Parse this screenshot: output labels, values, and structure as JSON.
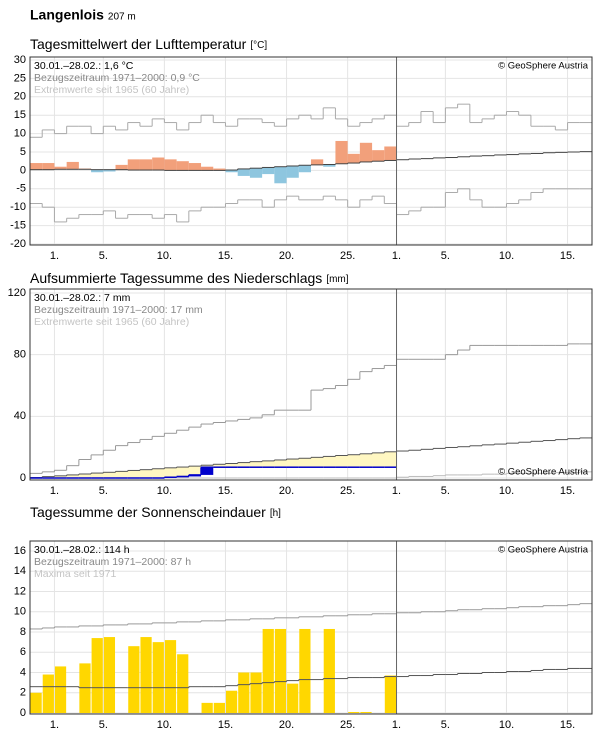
{
  "page_title": "Langenlois",
  "page_subtitle": "207 m",
  "chart_data": [
    {
      "type": "anomaly",
      "title": "Tagesmittelwert der Lufttemperatur",
      "unit": "[°C]",
      "info": [
        "30.01.–28.02.: 1,6 °C",
        "Bezugszeitraum 1971–2000: 0,9 °C",
        "Extremwerte seit 1965 (60 Jahre)"
      ],
      "copyright": "© GeoSphere Austria",
      "copyright_corner": "top-right",
      "categories": [
        null,
        null,
        "1.",
        null,
        null,
        null,
        "5.",
        null,
        null,
        null,
        null,
        "10.",
        null,
        null,
        null,
        null,
        "15.",
        null,
        null,
        null,
        null,
        "20.",
        null,
        null,
        null,
        null,
        "25.",
        null,
        null,
        null,
        "1.",
        null,
        null,
        null,
        "5.",
        null,
        null,
        null,
        null,
        "10.",
        null,
        null,
        null,
        null,
        "15.",
        null
      ],
      "ylim": [
        -20,
        30
      ],
      "yticks": [
        -20,
        -15,
        -10,
        -5,
        0,
        5,
        10,
        15,
        20,
        25,
        30
      ],
      "grid": true,
      "values": [
        2,
        2,
        1,
        2.3,
        0.5,
        -0.5,
        -0.3,
        1.5,
        3,
        3,
        3.5,
        3,
        2.5,
        2,
        1,
        0.5,
        -0.5,
        -1.5,
        -2,
        -1,
        -3.5,
        -2,
        -0.5,
        3,
        1,
        8,
        4.5,
        7.5,
        5.5,
        6.5,
        null,
        null,
        null,
        null,
        null,
        null,
        null,
        null,
        null,
        null,
        null,
        null,
        null,
        null,
        null,
        null
      ],
      "normal": [
        0.2,
        0.2,
        0.3,
        0.3,
        0.3,
        0.2,
        0.2,
        0.2,
        0.1,
        0.1,
        0.1,
        0,
        0,
        0,
        0,
        0,
        0.1,
        0.4,
        0.6,
        0.8,
        1,
        1.2,
        1.4,
        1.5,
        1.6,
        1.8,
        2,
        2.3,
        2.5,
        2.7,
        2.9,
        3.1,
        3.2,
        3.4,
        3.5,
        3.7,
        3.9,
        4,
        4.2,
        4.3,
        4.5,
        4.6,
        4.8,
        4.9,
        5,
        5.1
      ],
      "upper": [
        9,
        11,
        10,
        12,
        12,
        10,
        12,
        11,
        13,
        12,
        14,
        13,
        11,
        13,
        15,
        13,
        12,
        14,
        14,
        13,
        12,
        14,
        15,
        14,
        17,
        14,
        12,
        13,
        14,
        15,
        12,
        13,
        16,
        13,
        17,
        18,
        13,
        14,
        15,
        16,
        15,
        12,
        12,
        11,
        13,
        13
      ],
      "lower": [
        -9,
        -10,
        -14,
        -13,
        -12,
        -12,
        -11,
        -13,
        -12,
        -12,
        -13,
        -12,
        -14,
        -11,
        -10,
        -10,
        -9,
        -8,
        -8,
        -10,
        -8,
        -7,
        -8,
        -8,
        -7,
        -8,
        -10,
        -8,
        -7,
        -9,
        -12,
        -11,
        -10,
        -10,
        -6,
        -5,
        -8,
        -10,
        -10,
        -9,
        -8,
        -6,
        -5,
        -5,
        -5,
        -5
      ],
      "color_above": "#f2a07b",
      "color_below": "#8ec6df",
      "extreme_color": "#aaaaaa",
      "normal_color": "#444444"
    },
    {
      "type": "area",
      "title": "Aufsummierte Tagessumme des Niederschlags",
      "unit": "[mm]",
      "info": [
        "30.01.–28.02.: 7 mm",
        "Bezugszeitraum 1971–2000: 17 mm",
        "Extremwerte seit 1965 (60 Jahre)"
      ],
      "copyright": "© GeoSphere Austria",
      "copyright_corner": "bottom-right",
      "categories": [
        null,
        null,
        "1.",
        null,
        null,
        null,
        "5.",
        null,
        null,
        null,
        null,
        "10.",
        null,
        null,
        null,
        null,
        "15.",
        null,
        null,
        null,
        null,
        "20.",
        null,
        null,
        null,
        null,
        "25.",
        null,
        null,
        null,
        "1.",
        null,
        null,
        null,
        "5.",
        null,
        null,
        null,
        null,
        "10.",
        null,
        null,
        null,
        null,
        "15.",
        null
      ],
      "ylim": [
        0,
        120
      ],
      "yticks": [
        0,
        40,
        80,
        120
      ],
      "grid": true,
      "values": [
        0,
        0,
        0,
        0,
        0,
        0,
        0,
        0,
        0,
        0,
        0,
        0.5,
        1,
        2,
        7,
        7,
        7,
        7,
        7,
        7,
        7,
        7,
        7,
        7,
        7,
        7,
        7,
        7,
        7,
        7,
        null,
        null,
        null,
        null,
        null,
        null,
        null,
        null,
        null,
        null,
        null,
        null,
        null,
        null,
        null,
        null
      ],
      "normal": [
        0.3,
        0.9,
        1.4,
        2,
        2.6,
        3.2,
        3.7,
        4.3,
        4.9,
        5.4,
        6,
        6.6,
        7.1,
        7.7,
        8.3,
        8.9,
        9.4,
        10,
        10.6,
        11.1,
        11.7,
        12.3,
        12.8,
        13.4,
        14,
        14.6,
        15.1,
        15.7,
        16.3,
        17,
        17.5,
        18,
        18.6,
        19.2,
        19.8,
        20.3,
        20.9,
        21.5,
        22,
        22.6,
        23.2,
        23.8,
        24.3,
        24.9,
        25.5,
        26
      ],
      "upper": [
        3,
        4,
        5,
        8,
        12,
        15,
        18,
        21,
        23,
        25,
        27,
        29,
        31,
        33,
        35,
        36,
        37,
        38,
        39,
        41,
        44,
        44,
        44,
        57,
        58,
        60,
        64,
        69,
        71,
        73,
        77,
        77,
        77,
        77,
        80,
        83,
        86,
        86,
        86,
        86,
        86,
        86,
        86,
        86,
        87,
        87
      ],
      "lower": [
        0,
        0,
        0,
        0,
        0,
        0,
        0,
        0,
        0,
        0,
        0,
        0,
        0,
        0,
        0,
        0,
        0,
        0,
        0,
        0,
        0,
        0,
        0,
        0,
        0,
        0,
        0,
        0,
        0,
        0,
        0.5,
        1,
        1,
        1.5,
        2,
        2,
        2,
        2.5,
        2.5,
        3,
        3,
        3,
        3,
        3.5,
        3.5,
        4
      ],
      "fill_color": "#fff7c2",
      "value_color": "#0000cc",
      "upper_color": "#999999",
      "lower_color": "#bbbbbb",
      "normal_color": "#555555"
    },
    {
      "type": "bar",
      "title": "Tagessumme der Sonnenscheindauer",
      "unit": "[h]",
      "info": [
        "30.01.–28.02.: 114 h",
        "Bezugszeitraum 1971–2000: 87 h",
        "Maxima seit 1971"
      ],
      "copyright": "© GeoSphere Austria",
      "copyright_corner": "top-right",
      "categories": [
        null,
        null,
        "1.",
        null,
        null,
        null,
        "5.",
        null,
        null,
        null,
        null,
        "10.",
        null,
        null,
        null,
        null,
        "15.",
        null,
        null,
        null,
        null,
        "20.",
        null,
        null,
        null,
        null,
        "25.",
        null,
        null,
        null,
        "1.",
        null,
        null,
        null,
        "5.",
        null,
        null,
        null,
        null,
        "10.",
        null,
        null,
        null,
        null,
        "15.",
        null
      ],
      "ylim": [
        0,
        16
      ],
      "yticks": [
        0,
        2,
        4,
        6,
        8,
        10,
        12,
        14,
        16
      ],
      "grid": true,
      "values": [
        2,
        3.8,
        4.6,
        0,
        4.9,
        7.4,
        7.5,
        0,
        6.6,
        7.5,
        7,
        7.2,
        5.8,
        0,
        1,
        1,
        2.2,
        4,
        4,
        8.3,
        8.3,
        2.9,
        8.3,
        0,
        8.3,
        0,
        0.1,
        0.1,
        0,
        3.7,
        null,
        null,
        null,
        null,
        null,
        null,
        null,
        null,
        null,
        null,
        null,
        null,
        null,
        null,
        null,
        null
      ],
      "normal": [
        2.6,
        2.6,
        2.6,
        2.6,
        2.5,
        2.5,
        2.5,
        2.5,
        2.5,
        2.5,
        2.5,
        2.5,
        2.5,
        2.6,
        2.6,
        2.6,
        2.7,
        2.8,
        2.9,
        3,
        3.1,
        3.2,
        3.3,
        3.3,
        3.4,
        3.4,
        3.5,
        3.5,
        3.5,
        3.6,
        3.6,
        3.7,
        3.7,
        3.8,
        3.8,
        3.9,
        3.9,
        4,
        4,
        4.1,
        4.1,
        4.2,
        4.3,
        4.3,
        4.4,
        4.4
      ],
      "upper": [
        8.3,
        8.4,
        8.5,
        8.5,
        8.6,
        8.6,
        8.7,
        8.7,
        8.8,
        8.8,
        8.9,
        8.9,
        9,
        9,
        9.1,
        9.1,
        9.2,
        9.2,
        9.3,
        9.3,
        9.4,
        9.4,
        9.5,
        9.5,
        9.6,
        9.6,
        9.7,
        9.7,
        9.8,
        9.8,
        9.9,
        9.9,
        10,
        10,
        10.1,
        10.2,
        10.2,
        10.3,
        10.3,
        10.4,
        10.5,
        10.5,
        10.6,
        10.6,
        10.7,
        10.8
      ],
      "color": "#ffd700",
      "upper_color": "#999999",
      "normal_color": "#555555"
    }
  ]
}
